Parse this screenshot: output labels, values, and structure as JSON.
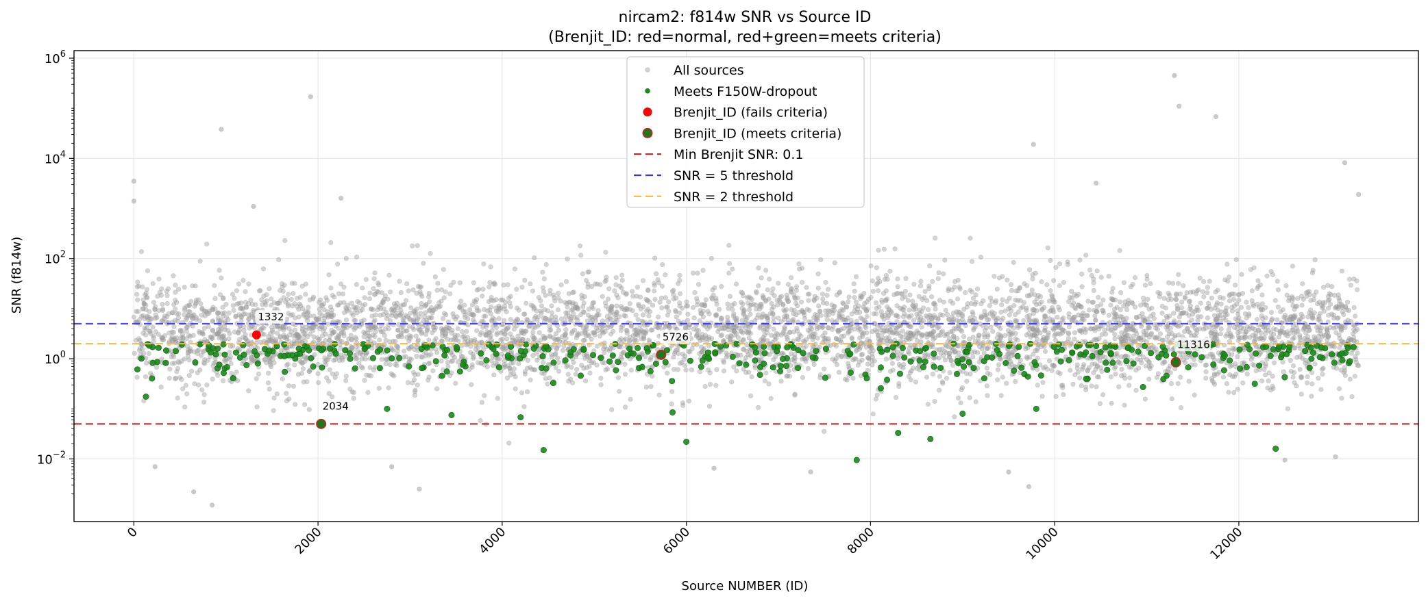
{
  "chart_data": {
    "type": "scatter",
    "title_line1": "nircam2: f814w SNR vs Source ID",
    "title_line2": "(Brenjit_ID: red=normal, red+green=meets criteria)",
    "xlabel": "Source NUMBER (ID)",
    "ylabel": "SNR (f814w)",
    "xlim": [
      -650,
      13950
    ],
    "ylim_log10": [
      -3.25,
      6.15
    ],
    "yscale": "log",
    "x_ticks": [
      0,
      2000,
      4000,
      6000,
      8000,
      10000,
      12000
    ],
    "x_tick_labels": [
      "0",
      "2000",
      "4000",
      "6000",
      "8000",
      "10000",
      "12000"
    ],
    "y_ticks_log10": [
      -2,
      0,
      2,
      4,
      6
    ],
    "y_tick_labels": [
      {
        "base": "10",
        "exp": "−2"
      },
      {
        "base": "10",
        "exp": "0"
      },
      {
        "base": "10",
        "exp": "2"
      },
      {
        "base": "10",
        "exp": "4"
      },
      {
        "base": "10",
        "exp": "6"
      }
    ],
    "grid": true,
    "legend_position": "upper center",
    "legend": [
      {
        "label": "All sources",
        "kind": "marker",
        "color": "#a0a0a0",
        "size": "small"
      },
      {
        "label": "Meets F150W-dropout",
        "kind": "marker",
        "color": "#1a8a1a",
        "size": "small"
      },
      {
        "label": "Brenjit_ID (fails criteria)",
        "kind": "marker",
        "color": "#ff0000",
        "size": "large"
      },
      {
        "label": "Brenjit_ID (meets criteria)",
        "kind": "marker-edge",
        "color": "#1a7a1a",
        "edge": "#b03020",
        "size": "large"
      },
      {
        "label": "Min Brenjit SNR: 0.1",
        "kind": "line",
        "color": "#b22222"
      },
      {
        "label": "SNR = 5 threshold",
        "kind": "line",
        "color": "#3333ff"
      },
      {
        "label": "SNR = 2 threshold",
        "kind": "line",
        "color": "#ffb733"
      }
    ],
    "hlines": [
      {
        "y": 0.05,
        "color": "#b22222",
        "name": "Min Brenjit SNR: 0.1"
      },
      {
        "y": 5,
        "color": "#3333ff",
        "name": "SNR = 5 threshold"
      },
      {
        "y": 2,
        "color": "#ffb733",
        "name": "SNR = 2 threshold"
      }
    ],
    "all_sources_summary": {
      "x_range": [
        0,
        13300
      ],
      "count_approx": 13300,
      "bulk_snr_range": [
        0.3,
        40
      ],
      "median_snr_approx": 3.5,
      "color": "#a0a0a0"
    },
    "all_sources_outliers": [
      {
        "x": 0,
        "y": 3500
      },
      {
        "x": 0,
        "y": 1400
      },
      {
        "x": 950,
        "y": 38000
      },
      {
        "x": 1920,
        "y": 170000
      },
      {
        "x": 11300,
        "y": 450000
      },
      {
        "x": 11350,
        "y": 110000
      },
      {
        "x": 11750,
        "y": 68000
      },
      {
        "x": 9770,
        "y": 19000
      },
      {
        "x": 13150,
        "y": 8200
      },
      {
        "x": 13300,
        "y": 1900
      },
      {
        "x": 2250,
        "y": 1600
      },
      {
        "x": 1300,
        "y": 1100
      },
      {
        "x": 10450,
        "y": 3200
      },
      {
        "x": 650,
        "y": 0.0022
      },
      {
        "x": 850,
        "y": 0.0012
      },
      {
        "x": 3100,
        "y": 0.0025
      },
      {
        "x": 230,
        "y": 0.007
      },
      {
        "x": 2800,
        "y": 0.007
      },
      {
        "x": 7350,
        "y": 0.0055
      },
      {
        "x": 9720,
        "y": 0.0028
      },
      {
        "x": 12500,
        "y": 0.0095
      },
      {
        "x": 13050,
        "y": 0.011
      },
      {
        "x": 6300,
        "y": 0.0065
      },
      {
        "x": 9500,
        "y": 0.0055
      }
    ],
    "meets_dropout_summary": {
      "x_range": [
        0,
        13300
      ],
      "count_approx": 380,
      "snr_range": [
        0.02,
        2
      ],
      "color": "#1a8a1a"
    },
    "meets_dropout_outliers": [
      {
        "x": 4450,
        "y": 0.015
      },
      {
        "x": 6000,
        "y": 0.022
      },
      {
        "x": 7850,
        "y": 0.0095
      },
      {
        "x": 12400,
        "y": 0.016
      },
      {
        "x": 8300,
        "y": 0.033
      },
      {
        "x": 8650,
        "y": 0.025
      },
      {
        "x": 2750,
        "y": 0.1
      },
      {
        "x": 3450,
        "y": 0.075
      },
      {
        "x": 4200,
        "y": 0.068
      },
      {
        "x": 5850,
        "y": 0.085
      },
      {
        "x": 9000,
        "y": 0.08
      },
      {
        "x": 9800,
        "y": 0.1
      }
    ],
    "brenjit": [
      {
        "id": "1332",
        "x": 1332,
        "y": 3.0,
        "status": "fails"
      },
      {
        "id": "2034",
        "x": 2034,
        "y": 0.05,
        "status": "meets"
      },
      {
        "id": "5726",
        "x": 5726,
        "y": 1.2,
        "status": "meets"
      },
      {
        "id": "11316",
        "x": 11316,
        "y": 0.85,
        "status": "meets"
      }
    ]
  }
}
